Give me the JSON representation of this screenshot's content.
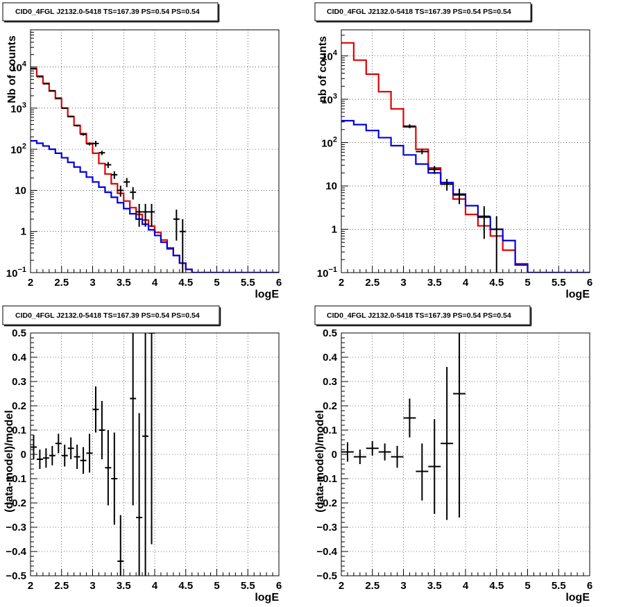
{
  "chart_data": [
    {
      "type": "line",
      "title": "CID0_4FGL J2132.0-5418 TS=167.39 PS=0.54 PS=0.54",
      "xlabel": "logE",
      "ylabel": "Nb of counts",
      "xlim": [
        2,
        6
      ],
      "ylim": [
        0.1,
        80000
      ],
      "yscale": "log",
      "grid": true,
      "xticks": [
        "2",
        "2.5",
        "3",
        "3.5",
        "4",
        "4.5",
        "5",
        "5.5",
        "6"
      ],
      "yticks": [
        {
          "value": 0.1,
          "base": "10",
          "exp": "−1"
        },
        {
          "value": 1,
          "label": "1"
        },
        {
          "value": 10,
          "label": "10"
        },
        {
          "value": 100,
          "base": "10",
          "exp": "2"
        },
        {
          "value": 1000,
          "base": "10",
          "exp": "3"
        },
        {
          "value": 10000,
          "base": "10",
          "exp": "4"
        }
      ],
      "bin_edges": [
        2.0,
        2.1,
        2.2,
        2.3,
        2.4,
        2.5,
        2.6,
        2.7,
        2.8,
        2.9,
        3.0,
        3.1,
        3.2,
        3.3,
        3.4,
        3.5,
        3.6,
        3.7,
        3.8,
        3.9,
        4.0,
        4.1,
        4.2,
        4.3,
        4.4,
        4.5,
        4.6,
        4.7,
        4.8,
        4.9,
        5.0,
        5.1,
        5.2,
        5.3,
        5.4,
        5.5,
        5.6,
        5.7,
        5.8,
        5.9,
        6.0
      ],
      "series": [
        {
          "color": "#e00000",
          "style": "step",
          "values": [
            9000,
            6000,
            4000,
            2600,
            1700,
            1000,
            620,
            380,
            240,
            140,
            80,
            45,
            25,
            14.5,
            8.5,
            5.5,
            3.8,
            2.6,
            1.9,
            1.35,
            0.95,
            0.62,
            0.4,
            0.26,
            0.17,
            0.12,
            0.1,
            0.1,
            0.1,
            0.1,
            0.1,
            0.1,
            0.1,
            0.1,
            0.1,
            0.1,
            0.1,
            0.1,
            0.1,
            0.1
          ]
        },
        {
          "color": "#0000e0",
          "style": "step",
          "values": [
            160,
            140,
            120,
            100,
            80,
            62,
            48,
            37,
            28,
            21,
            16,
            12,
            9,
            6.8,
            5.0,
            3.6,
            2.7,
            2.0,
            1.5,
            1.1,
            0.8,
            0.55,
            0.38,
            0.26,
            0.17,
            0.12,
            0.1,
            0.1,
            0.1,
            0.1,
            0.1,
            0.1,
            0.1,
            0.1,
            0.1,
            0.1,
            0.1,
            0.1,
            0.1,
            0.1
          ]
        },
        {
          "color": "#000000",
          "style": "errorbar",
          "points": [
            {
              "x": 2.05,
              "y": 9200,
              "xerr": 0.05,
              "lo": 9100,
              "hi": 9300
            },
            {
              "x": 2.15,
              "y": 5800,
              "xerr": 0.05,
              "lo": 5720,
              "hi": 5880
            },
            {
              "x": 2.25,
              "y": 3900,
              "xerr": 0.05,
              "lo": 3840,
              "hi": 3960
            },
            {
              "x": 2.35,
              "y": 2650,
              "xerr": 0.05,
              "lo": 2600,
              "hi": 2700
            },
            {
              "x": 2.45,
              "y": 1750,
              "xerr": 0.05,
              "lo": 1710,
              "hi": 1790
            },
            {
              "x": 2.55,
              "y": 1000,
              "xerr": 0.05,
              "lo": 970,
              "hi": 1030
            },
            {
              "x": 2.65,
              "y": 630,
              "xerr": 0.05,
              "lo": 605,
              "hi": 655
            },
            {
              "x": 2.75,
              "y": 375,
              "xerr": 0.05,
              "lo": 356,
              "hi": 394
            },
            {
              "x": 2.85,
              "y": 230,
              "xerr": 0.05,
              "lo": 215,
              "hi": 245
            },
            {
              "x": 2.95,
              "y": 135,
              "xerr": 0.05,
              "lo": 124,
              "hi": 146
            },
            {
              "x": 3.05,
              "y": 138,
              "xerr": 0.05,
              "lo": 115,
              "hi": 160
            },
            {
              "x": 3.15,
              "y": 82,
              "xerr": 0.05,
              "lo": 72,
              "hi": 92
            },
            {
              "x": 3.25,
              "y": 42,
              "xerr": 0.05,
              "lo": 35,
              "hi": 49
            },
            {
              "x": 3.35,
              "y": 24,
              "xerr": 0.05,
              "lo": 19,
              "hi": 29
            },
            {
              "x": 3.45,
              "y": 10,
              "xerr": 0.05,
              "lo": 7,
              "hi": 13
            },
            {
              "x": 3.55,
              "y": 16,
              "xerr": 0.05,
              "lo": 12,
              "hi": 20
            },
            {
              "x": 3.65,
              "y": 9,
              "xerr": 0.05,
              "lo": 6,
              "hi": 12
            },
            {
              "x": 3.75,
              "y": 3,
              "xerr": 0.05,
              "lo": 1.3,
              "hi": 4.7
            },
            {
              "x": 3.85,
              "y": 3,
              "xerr": 0.05,
              "lo": 1.3,
              "hi": 4.7
            },
            {
              "x": 3.95,
              "y": 3,
              "xerr": 0.05,
              "lo": 1.3,
              "hi": 4.7
            },
            {
              "x": 4.35,
              "y": 2,
              "xerr": 0.05,
              "lo": 0.6,
              "hi": 3.4
            },
            {
              "x": 4.45,
              "y": 1,
              "xerr": 0.05,
              "lo": 0.1,
              "hi": 2.0
            }
          ]
        }
      ]
    },
    {
      "type": "line",
      "title": "CID0_4FGL J2132.0-5418 TS=167.39 PS=0.54 PS=0.54",
      "xlabel": "logE",
      "ylabel": "nb of counts",
      "xlim": [
        2,
        6
      ],
      "ylim": [
        0.1,
        40000
      ],
      "yscale": "log",
      "grid": true,
      "xticks": [
        "2",
        "2.5",
        "3",
        "3.5",
        "4",
        "4.5",
        "5",
        "5.5",
        "6"
      ],
      "yticks": [
        {
          "value": 0.1,
          "base": "10",
          "exp": "−1"
        },
        {
          "value": 1,
          "label": "1"
        },
        {
          "value": 10,
          "label": "10"
        },
        {
          "value": 100,
          "base": "10",
          "exp": "2"
        },
        {
          "value": 1000,
          "base": "10",
          "exp": "3"
        },
        {
          "value": 10000,
          "base": "10",
          "exp": "4"
        }
      ],
      "bin_edges": [
        2.0,
        2.2,
        2.4,
        2.6,
        2.8,
        3.0,
        3.2,
        3.4,
        3.6,
        3.8,
        4.0,
        4.2,
        4.4,
        4.6,
        4.8,
        5.0,
        5.2,
        5.4,
        5.6,
        5.8,
        6.0
      ],
      "series": [
        {
          "color": "#e00000",
          "style": "step",
          "values": [
            20000,
            8000,
            3800,
            1500,
            600,
            230,
            70,
            26,
            11,
            5.0,
            2.2,
            1.2,
            0.7,
            0.33,
            0.16,
            0.1,
            0.1,
            0.1,
            0.1,
            0.1
          ]
        },
        {
          "color": "#0000e0",
          "style": "step",
          "values": [
            320,
            260,
            190,
            130,
            85,
            52,
            32,
            20,
            12,
            6.5,
            3.5,
            1.9,
            1.0,
            0.55,
            0.15,
            0.1,
            0.1,
            0.1,
            0.1,
            0.1
          ]
        },
        {
          "color": "#000000",
          "style": "errorbar",
          "points": [
            {
              "x": 3.1,
              "y": 240,
              "xerr": 0.1,
              "lo": 215,
              "hi": 265
            },
            {
              "x": 3.3,
              "y": 62,
              "xerr": 0.1,
              "lo": 54,
              "hi": 70
            },
            {
              "x": 3.5,
              "y": 24,
              "xerr": 0.1,
              "lo": 19,
              "hi": 29
            },
            {
              "x": 3.7,
              "y": 11,
              "xerr": 0.1,
              "lo": 7.8,
              "hi": 14.5
            },
            {
              "x": 3.9,
              "y": 6.2,
              "xerr": 0.1,
              "lo": 3.8,
              "hi": 8.6
            },
            {
              "x": 4.3,
              "y": 2.0,
              "xerr": 0.1,
              "lo": 0.6,
              "hi": 3.4
            },
            {
              "x": 4.5,
              "y": 1.0,
              "xerr": 0.1,
              "lo": 0.1,
              "hi": 2.0
            }
          ]
        }
      ]
    },
    {
      "type": "scatter",
      "title": "CID0_4FGL J2132.0-5418 TS=167.39 PS=0.54 PS=0.54",
      "xlabel": "logE",
      "ylabel": "(data-model)/model",
      "xlim": [
        2,
        6
      ],
      "ylim": [
        -0.5,
        0.5
      ],
      "yscale": "linear",
      "grid": true,
      "xticks": [
        "2",
        "2.5",
        "3",
        "3.5",
        "4",
        "4.5",
        "5",
        "5.5",
        "6"
      ],
      "yticks": [
        {
          "value": -0.5,
          "label": "−0.5"
        },
        {
          "value": -0.4,
          "label": "−0.4"
        },
        {
          "value": -0.3,
          "label": "−0.3"
        },
        {
          "value": -0.2,
          "label": "−0.2"
        },
        {
          "value": -0.1,
          "label": "−0.1"
        },
        {
          "value": 0,
          "label": "0"
        },
        {
          "value": 0.1,
          "label": "0.1"
        },
        {
          "value": 0.2,
          "label": "0.2"
        },
        {
          "value": 0.3,
          "label": "0.3"
        },
        {
          "value": 0.4,
          "label": "0.4"
        },
        {
          "value": 0.5,
          "label": "0.5"
        }
      ],
      "series": [
        {
          "color": "#000000",
          "style": "errorbar",
          "points": [
            {
              "x": 2.05,
              "y": 0.03,
              "xerr": 0.05,
              "lo": -0.02,
              "hi": 0.08
            },
            {
              "x": 2.15,
              "y": -0.02,
              "xerr": 0.05,
              "lo": -0.06,
              "hi": 0.02
            },
            {
              "x": 2.25,
              "y": -0.015,
              "xerr": 0.05,
              "lo": -0.055,
              "hi": 0.025
            },
            {
              "x": 2.35,
              "y": -0.005,
              "xerr": 0.05,
              "lo": -0.045,
              "hi": 0.035
            },
            {
              "x": 2.45,
              "y": 0.045,
              "xerr": 0.05,
              "lo": 0.005,
              "hi": 0.085
            },
            {
              "x": 2.55,
              "y": -0.005,
              "xerr": 0.05,
              "lo": -0.05,
              "hi": 0.04
            },
            {
              "x": 2.65,
              "y": 0.025,
              "xerr": 0.05,
              "lo": -0.02,
              "hi": 0.07
            },
            {
              "x": 2.75,
              "y": -0.01,
              "xerr": 0.05,
              "lo": -0.06,
              "hi": 0.04
            },
            {
              "x": 2.85,
              "y": -0.025,
              "xerr": 0.05,
              "lo": -0.08,
              "hi": 0.03
            },
            {
              "x": 2.95,
              "y": 0.005,
              "xerr": 0.05,
              "lo": -0.075,
              "hi": 0.085
            },
            {
              "x": 3.05,
              "y": 0.185,
              "xerr": 0.05,
              "lo": 0.09,
              "hi": 0.28
            },
            {
              "x": 3.15,
              "y": 0.1,
              "xerr": 0.05,
              "lo": -0.02,
              "hi": 0.22
            },
            {
              "x": 3.25,
              "y": -0.055,
              "xerr": 0.05,
              "lo": -0.21,
              "hi": 0.1
            },
            {
              "x": 3.35,
              "y": -0.1,
              "xerr": 0.05,
              "lo": -0.29,
              "hi": 0.09
            },
            {
              "x": 3.45,
              "y": -0.44,
              "xerr": 0.05,
              "lo": -0.5,
              "hi": -0.25
            },
            {
              "x": 3.65,
              "y": 0.23,
              "xerr": 0.05,
              "lo": -0.21,
              "hi": 0.5
            },
            {
              "x": 3.75,
              "y": -0.26,
              "xerr": 0.05,
              "lo": -0.5,
              "hi": 0.17
            },
            {
              "x": 3.85,
              "y": 0.075,
              "xerr": 0.05,
              "lo": -0.5,
              "hi": 0.5
            },
            {
              "x": 3.95,
              "y": 0.5,
              "xerr": 0.05,
              "lo": -0.37,
              "hi": 0.5
            }
          ]
        }
      ]
    },
    {
      "type": "scatter",
      "title": "CID0_4FGL J2132.0-5418 TS=167.39 PS=0.54 PS=0.54",
      "xlabel": "logE",
      "ylabel": "(data-model)/model",
      "xlim": [
        2,
        6
      ],
      "ylim": [
        -0.5,
        0.5
      ],
      "yscale": "linear",
      "grid": true,
      "xticks": [
        "2",
        "2.5",
        "3",
        "3.5",
        "4",
        "4.5",
        "5",
        "5.5",
        "6"
      ],
      "yticks": [
        {
          "value": -0.5,
          "label": "−0.5"
        },
        {
          "value": -0.4,
          "label": "−0.4"
        },
        {
          "value": -0.3,
          "label": "−0.3"
        },
        {
          "value": -0.2,
          "label": "−0.2"
        },
        {
          "value": -0.1,
          "label": "−0.1"
        },
        {
          "value": 0,
          "label": "0"
        },
        {
          "value": 0.1,
          "label": "0.1"
        },
        {
          "value": 0.2,
          "label": "0.2"
        },
        {
          "value": 0.3,
          "label": "0.3"
        },
        {
          "value": 0.4,
          "label": "0.4"
        },
        {
          "value": 0.5,
          "label": "0.5"
        }
      ],
      "series": [
        {
          "color": "#000000",
          "style": "errorbar",
          "points": [
            {
              "x": 2.1,
              "y": 0.01,
              "xerr": 0.1,
              "lo": -0.03,
              "hi": 0.05
            },
            {
              "x": 2.3,
              "y": -0.01,
              "xerr": 0.1,
              "lo": -0.04,
              "hi": 0.02
            },
            {
              "x": 2.5,
              "y": 0.025,
              "xerr": 0.1,
              "lo": -0.005,
              "hi": 0.055
            },
            {
              "x": 2.7,
              "y": 0.01,
              "xerr": 0.1,
              "lo": -0.025,
              "hi": 0.045
            },
            {
              "x": 2.9,
              "y": -0.01,
              "xerr": 0.1,
              "lo": -0.055,
              "hi": 0.035
            },
            {
              "x": 3.1,
              "y": 0.15,
              "xerr": 0.1,
              "lo": 0.07,
              "hi": 0.23
            },
            {
              "x": 3.3,
              "y": -0.07,
              "xerr": 0.1,
              "lo": -0.19,
              "hi": 0.045
            },
            {
              "x": 3.5,
              "y": -0.05,
              "xerr": 0.1,
              "lo": -0.245,
              "hi": 0.145
            },
            {
              "x": 3.7,
              "y": 0.045,
              "xerr": 0.1,
              "lo": -0.27,
              "hi": 0.36
            },
            {
              "x": 3.9,
              "y": 0.25,
              "xerr": 0.1,
              "lo": -0.26,
              "hi": 0.5
            }
          ]
        }
      ]
    }
  ]
}
